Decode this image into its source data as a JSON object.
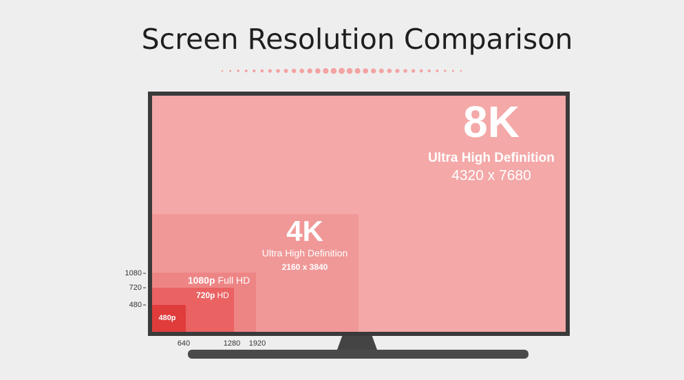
{
  "header": {
    "title": "Screen Resolution Comparison"
  },
  "screens": [
    {
      "label": "8K",
      "subtitle": "Ultra High Definition",
      "resolution": "4320 x 7680"
    },
    {
      "label": "4K",
      "subtitle": "Ultra High Definition",
      "resolution": "2160 x 3840"
    },
    {
      "label": "1080p",
      "subtitle": "Full HD"
    },
    {
      "label": "720p",
      "subtitle": "HD"
    },
    {
      "label": "480p"
    }
  ],
  "axes": {
    "y": [
      "1080",
      "720",
      "480"
    ],
    "x": [
      "640",
      "1280",
      "1920"
    ]
  }
}
